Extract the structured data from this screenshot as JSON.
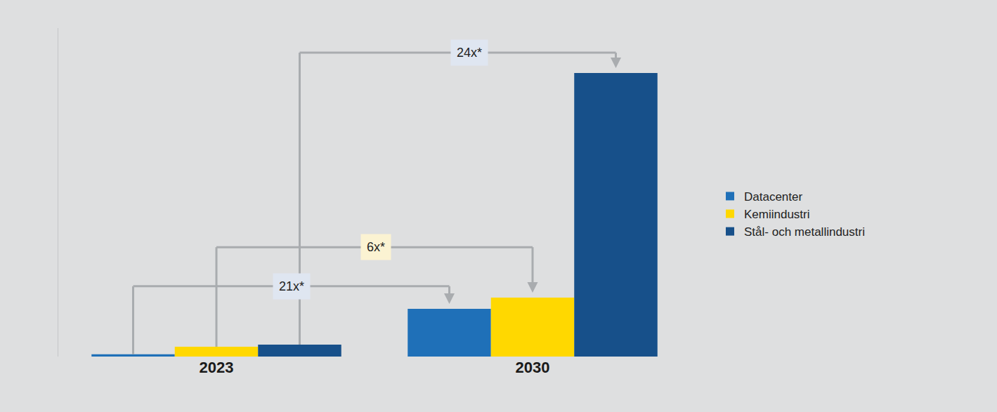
{
  "chart_data": {
    "type": "bar",
    "categories": [
      "2023",
      "2030"
    ],
    "series": [
      {
        "name": "Datacenter",
        "color": "#1f70b8",
        "values": [
          3.2,
          68
        ]
      },
      {
        "name": "Kemiindustri",
        "color": "#ffd800",
        "values": [
          14,
          84
        ]
      },
      {
        "name": "Stål- och metallindustri",
        "color": "#17508a",
        "values": [
          17,
          404
        ]
      }
    ],
    "ylim": [
      0,
      468
    ],
    "tick_labels": "x",
    "grid": false,
    "legend": "right",
    "annotations": [
      {
        "text": "24x*",
        "series": "Stål- och metallindustri"
      },
      {
        "text": "6x*",
        "series": "Kemiindustri"
      },
      {
        "text": "21x*",
        "series": "Datacenter"
      }
    ]
  }
}
